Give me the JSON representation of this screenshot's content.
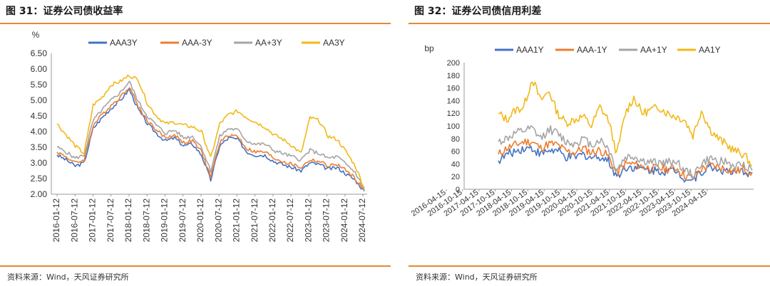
{
  "figures": [
    {
      "title": "图 31：证券公司债收益率",
      "source": "资料来源：Wind，天风证券研究所"
    },
    {
      "title": "图 32：证券公司债信用利差",
      "source": "资料来源：Wind，天风证券研究所"
    }
  ],
  "chart_data": [
    {
      "type": "line",
      "title": "",
      "ylabel": "%",
      "xlabel": "",
      "ylim": [
        2.0,
        6.5
      ],
      "yticks": [
        "6.50",
        "6.00",
        "5.50",
        "5.00",
        "4.50",
        "4.00",
        "3.50",
        "3.00",
        "2.50",
        "2.00"
      ],
      "x_tick_labels": [
        "2016-01-12",
        "2016-07-12",
        "2017-01-12",
        "2017-07-12",
        "2018-01-12",
        "2018-07-12",
        "2019-01-12",
        "2019-07-12",
        "2020-01-12",
        "2020-07-12",
        "2021-01-12",
        "2021-07-12",
        "2022-01-12",
        "2022-07-12",
        "2023-01-12",
        "2023-07-12",
        "2024-01-12",
        "2024-07-12"
      ],
      "x": [
        "2016-01",
        "2016-04",
        "2016-07",
        "2016-10",
        "2017-01",
        "2017-04",
        "2017-07",
        "2017-10",
        "2018-01",
        "2018-04",
        "2018-07",
        "2018-10",
        "2019-01",
        "2019-04",
        "2019-07",
        "2019-10",
        "2020-01",
        "2020-04",
        "2020-07",
        "2020-10",
        "2021-01",
        "2021-04",
        "2021-07",
        "2021-10",
        "2022-01",
        "2022-04",
        "2022-07",
        "2022-10",
        "2023-01",
        "2023-04",
        "2023-07",
        "2023-10",
        "2024-01",
        "2024-04",
        "2024-07"
      ],
      "legend_position": "top",
      "colors": {
        "AAA3Y": "#4472c4",
        "AAA-3Y": "#ed7d31",
        "AA+3Y": "#a5a5a5",
        "AA3Y": "#f2b818"
      },
      "series": [
        {
          "name": "AAA3Y",
          "values": [
            3.25,
            3.1,
            2.9,
            3.0,
            4.1,
            4.45,
            4.75,
            5.0,
            5.35,
            4.7,
            4.25,
            3.95,
            3.7,
            3.8,
            3.55,
            3.6,
            3.25,
            2.45,
            3.55,
            3.8,
            3.75,
            3.35,
            3.25,
            3.25,
            3.05,
            2.95,
            2.85,
            2.75,
            3.0,
            2.95,
            2.8,
            2.85,
            2.65,
            2.45,
            2.1
          ]
        },
        {
          "name": "AAA-3Y",
          "values": [
            3.35,
            3.2,
            3.0,
            3.1,
            4.2,
            4.55,
            4.85,
            5.1,
            5.45,
            4.8,
            4.35,
            4.05,
            3.8,
            3.9,
            3.65,
            3.7,
            3.35,
            2.55,
            3.65,
            3.9,
            3.85,
            3.45,
            3.35,
            3.35,
            3.15,
            3.05,
            2.95,
            2.85,
            3.1,
            3.05,
            2.9,
            2.95,
            2.75,
            2.5,
            2.12
          ]
        },
        {
          "name": "AA+3Y",
          "values": [
            3.5,
            3.35,
            3.15,
            3.25,
            4.35,
            4.7,
            5.0,
            5.25,
            5.6,
            4.95,
            4.5,
            4.2,
            3.95,
            4.05,
            3.8,
            3.85,
            3.5,
            2.75,
            3.85,
            4.1,
            4.05,
            3.7,
            3.6,
            3.6,
            3.4,
            3.3,
            3.2,
            3.1,
            3.4,
            3.3,
            3.15,
            3.2,
            2.95,
            2.7,
            2.15
          ]
        },
        {
          "name": "AA3Y",
          "values": [
            4.25,
            3.9,
            3.55,
            3.3,
            4.85,
            5.1,
            5.5,
            5.6,
            5.8,
            5.65,
            4.9,
            4.5,
            4.25,
            4.3,
            4.2,
            4.15,
            4.0,
            3.15,
            4.25,
            4.55,
            4.65,
            4.45,
            4.3,
            4.15,
            3.9,
            3.75,
            3.55,
            3.3,
            4.45,
            4.35,
            3.85,
            3.75,
            3.35,
            2.9,
            2.2
          ]
        }
      ]
    },
    {
      "type": "line",
      "title": "",
      "ylabel": "bp",
      "xlabel": "",
      "ylim": [
        0,
        200
      ],
      "yticks": [
        "200",
        "180",
        "160",
        "140",
        "120",
        "100",
        "80",
        "60",
        "40",
        "20",
        "0"
      ],
      "x_tick_labels": [
        "2016-04-15",
        "2016-10-15",
        "2017-04-15",
        "2017-10-15",
        "2018-04-15",
        "2018-10-15",
        "2019-04-15",
        "2019-10-15",
        "2020-04-15",
        "2020-10-15",
        "2021-04-15",
        "2021-10-15",
        "2022-04-15",
        "2022-10-15",
        "2023-04-15",
        "2023-10-15",
        "2024-04-15"
      ],
      "x": [
        "2017-02",
        "2017-05",
        "2017-08",
        "2017-11",
        "2018-02",
        "2018-05",
        "2018-08",
        "2018-11",
        "2019-02",
        "2019-05",
        "2019-08",
        "2019-11",
        "2020-02",
        "2020-05",
        "2020-08",
        "2020-11",
        "2021-02",
        "2021-05",
        "2021-08",
        "2021-11",
        "2022-02",
        "2022-05",
        "2022-08",
        "2022-11",
        "2023-02",
        "2023-05",
        "2023-08",
        "2023-11",
        "2024-02",
        "2024-05",
        "2024-08"
      ],
      "legend_position": "top",
      "colors": {
        "AAA1Y": "#4472c4",
        "AAA-1Y": "#ed7d31",
        "AA+1Y": "#a5a5a5",
        "AA1Y": "#f2b818"
      },
      "series": [
        {
          "name": "AAA1Y",
          "values": [
            45,
            55,
            60,
            65,
            65,
            55,
            62,
            60,
            50,
            50,
            55,
            50,
            52,
            45,
            20,
            35,
            35,
            32,
            30,
            30,
            28,
            30,
            18,
            15,
            28,
            35,
            32,
            28,
            25,
            28,
            25
          ]
        },
        {
          "name": "AAA-1Y",
          "values": [
            55,
            65,
            70,
            75,
            75,
            65,
            72,
            70,
            60,
            58,
            65,
            58,
            62,
            52,
            25,
            40,
            40,
            36,
            33,
            33,
            32,
            34,
            22,
            18,
            32,
            38,
            35,
            32,
            28,
            32,
            27
          ]
        },
        {
          "name": "AA+1Y",
          "values": [
            75,
            80,
            88,
            92,
            95,
            80,
            95,
            88,
            75,
            72,
            80,
            70,
            78,
            65,
            30,
            50,
            52,
            45,
            42,
            42,
            42,
            45,
            30,
            22,
            40,
            48,
            45,
            42,
            35,
            40,
            30
          ]
        },
        {
          "name": "AA1Y",
          "values": [
            120,
            110,
            125,
            130,
            175,
            140,
            155,
            120,
            105,
            110,
            115,
            100,
            130,
            110,
            55,
            120,
            145,
            120,
            125,
            130,
            120,
            115,
            110,
            85,
            125,
            95,
            80,
            70,
            60,
            55,
            38
          ]
        }
      ]
    }
  ]
}
